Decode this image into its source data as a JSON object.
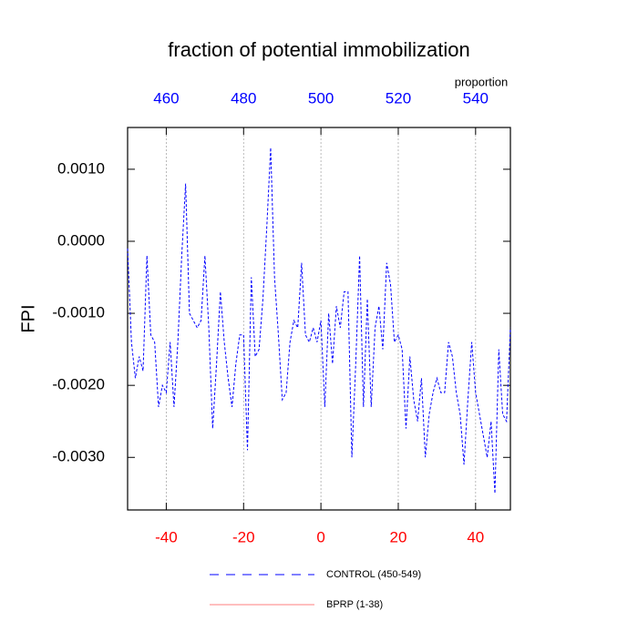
{
  "chart_data": {
    "type": "line",
    "title": "fraction of potential immobilization",
    "ylabel": "FPI",
    "x2label": "proportion",
    "x": [
      -50,
      -49,
      -48,
      -47,
      -46,
      -45,
      -44,
      -43,
      -42,
      -41,
      -40,
      -39,
      -38,
      -37,
      -36,
      -35,
      -34,
      -33,
      -32,
      -31,
      -30,
      -29,
      -28,
      -27,
      -26,
      -25,
      -24,
      -23,
      -22,
      -21,
      -20,
      -19,
      -18,
      -17,
      -16,
      -15,
      -14,
      -13,
      -12,
      -11,
      -10,
      -9,
      -8,
      -7,
      -6,
      -5,
      -4,
      -3,
      -2,
      -1,
      0,
      1,
      2,
      3,
      4,
      5,
      6,
      7,
      8,
      9,
      10,
      11,
      12,
      13,
      14,
      15,
      16,
      17,
      18,
      19,
      20,
      21,
      22,
      23,
      24,
      25,
      26,
      27,
      28,
      29,
      30,
      31,
      32,
      33,
      34,
      35,
      36,
      37,
      38,
      39,
      40,
      41,
      42,
      43,
      44,
      45,
      46,
      47,
      48,
      49
    ],
    "series": [
      {
        "name": "CONTROL (450-549)",
        "color": "#0000ff",
        "style": "dashed",
        "values": [
          -0.0001,
          -0.0014,
          -0.0019,
          -0.0016,
          -0.0018,
          -0.0002,
          -0.0013,
          -0.0014,
          -0.0023,
          -0.002,
          -0.0021,
          -0.0014,
          -0.0023,
          -0.0014,
          -0.0002,
          0.0008,
          -0.001,
          -0.0011,
          -0.0012,
          -0.0011,
          -0.0002,
          -0.0012,
          -0.0026,
          -0.0017,
          -0.0007,
          -0.0014,
          -0.0019,
          -0.0023,
          -0.0017,
          -0.0013,
          -0.0013,
          -0.0029,
          -0.0005,
          -0.0016,
          -0.0015,
          -0.0008,
          0.0002,
          0.0013,
          -0.0005,
          -0.0013,
          -0.0022,
          -0.0021,
          -0.0014,
          -0.0011,
          -0.0012,
          -0.0003,
          -0.0013,
          -0.0014,
          -0.0012,
          -0.0014,
          -0.0011,
          -0.0023,
          -0.001,
          -0.0017,
          -0.0009,
          -0.0012,
          -0.0007,
          -0.0007,
          -0.003,
          -0.0017,
          -0.0002,
          -0.0023,
          -0.0008,
          -0.0023,
          -0.0012,
          -0.0009,
          -0.0015,
          -0.0003,
          -0.0006,
          -0.0014,
          -0.0013,
          -0.0015,
          -0.0026,
          -0.0016,
          -0.0022,
          -0.0025,
          -0.0019,
          -0.003,
          -0.0024,
          -0.0021,
          -0.0019,
          -0.0021,
          -0.0021,
          -0.0014,
          -0.0016,
          -0.0021,
          -0.0024,
          -0.0031,
          -0.0022,
          -0.0014,
          -0.0021,
          -0.0024,
          -0.0027,
          -0.003,
          -0.0025,
          -0.0035,
          -0.0015,
          -0.0024,
          -0.0025,
          -0.0012
        ]
      },
      {
        "name": "BPRP (1-38)",
        "color": "#ff0000",
        "style": "solid",
        "values": [
          null,
          null,
          null,
          null,
          null,
          null,
          null,
          null,
          null,
          null,
          null,
          null,
          null,
          null,
          null,
          null,
          null,
          null,
          null,
          null,
          null,
          null,
          null,
          null,
          null,
          null,
          null,
          null,
          null,
          null,
          null,
          null,
          null,
          null,
          null,
          null,
          null,
          null,
          null,
          null,
          null,
          null,
          null,
          null,
          null,
          null,
          null,
          null,
          null,
          null,
          null,
          null,
          null,
          null,
          null,
          null,
          null,
          null,
          null,
          null,
          null,
          null,
          null,
          null,
          null,
          null,
          null,
          null,
          null,
          null,
          null,
          null,
          null,
          null,
          null,
          null,
          null,
          null,
          null,
          null,
          null,
          null,
          null,
          null,
          null,
          null,
          null,
          null,
          null,
          null,
          null,
          null,
          null,
          null,
          null,
          null,
          null,
          null,
          null,
          null
        ]
      }
    ],
    "xlim": [
      -50,
      49
    ],
    "xticks": [
      -40,
      -20,
      0,
      20,
      40
    ],
    "xtick_color": "#ff0000",
    "x2lim": [
      450,
      549
    ],
    "x2ticks": [
      460,
      480,
      500,
      520,
      540
    ],
    "x2tick_color": "#0000ff",
    "ylim": [
      -0.00373,
      0.00158
    ],
    "yticks": [
      {
        "value": -0.003,
        "label": "-0.0030"
      },
      {
        "value": -0.002,
        "label": "-0.0020"
      },
      {
        "value": -0.001,
        "label": "-0.0010"
      },
      {
        "value": 0,
        "label": "0.0000"
      },
      {
        "value": 0.001,
        "label": "0.0010"
      }
    ],
    "grid": "x",
    "legend": "bottom"
  }
}
